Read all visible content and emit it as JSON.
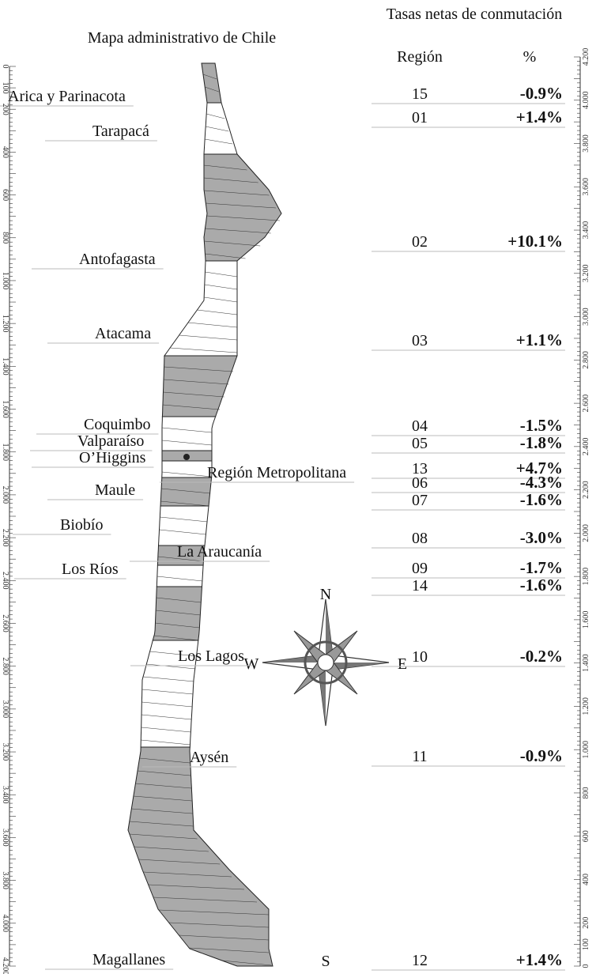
{
  "map_title": "Mapa administrativo de Chile",
  "table_title": "Tasas netas de conmutación",
  "table_header": [
    "Región",
    "%"
  ],
  "map_labels": [
    "Arica y Parinacota",
    "Tarapacá",
    "Antofagasta",
    "Atacama",
    "Coquimbo",
    "Valparaíso",
    "Región Metropolitana",
    "O’Higgins",
    "Maule",
    "Biobío",
    "La Araucanía",
    "Los Ríos",
    "Los Lagos",
    "Aysén",
    "Magallanes"
  ],
  "table_rows": [
    [
      "15",
      "-0.9%"
    ],
    [
      "01",
      "+1.4%"
    ],
    [
      "02",
      "+10.1%"
    ],
    [
      "03",
      "+1.1%"
    ],
    [
      "04",
      "-1.5%"
    ],
    [
      "05",
      "-1.8%"
    ],
    [
      "13",
      "+4.7%"
    ],
    [
      "06",
      "-4.3%"
    ],
    [
      "07",
      "-1.6%"
    ],
    [
      "08",
      "-3.0%"
    ],
    [
      "09",
      "-1.7%"
    ],
    [
      "14",
      "-1.6%"
    ],
    [
      "10",
      "-0.2%"
    ],
    [
      "11",
      "-0.9%"
    ],
    [
      "12",
      "+1.4%"
    ]
  ],
  "left_scale": [
    "0",
    "100",
    "200",
    "400",
    "600",
    "800",
    "1.000",
    "1.200",
    "1.400",
    "1.600",
    "1.800",
    "2.000",
    "2.200",
    "2.400",
    "2.600",
    "2.800",
    "3.000",
    "3.200",
    "3.400",
    "3.600",
    "3.800",
    "4.000",
    "4.200"
  ],
  "right_scale": [
    "4.200",
    "4.000",
    "3.800",
    "3.600",
    "3.400",
    "3.200",
    "3.000",
    "2.800",
    "2.600",
    "2.400",
    "2.200",
    "2.000",
    "1.800",
    "1.600",
    "1.400",
    "1.200",
    "1.000",
    "800",
    "600",
    "400",
    "200",
    "100",
    "0"
  ],
  "compass": {
    "n": "N",
    "s": "S",
    "e": "E",
    "w": "W"
  }
}
